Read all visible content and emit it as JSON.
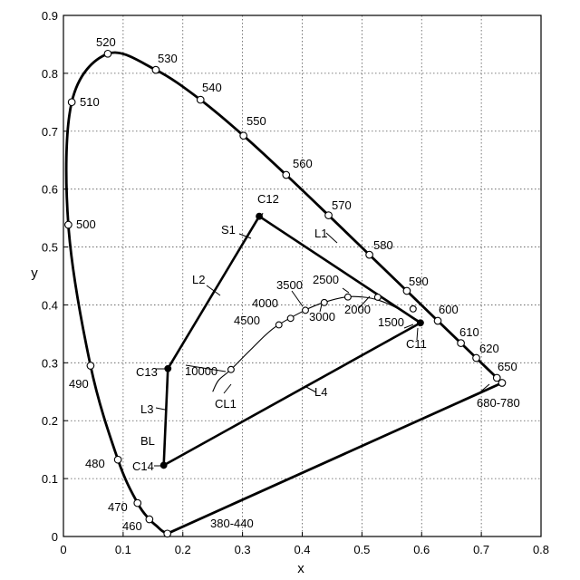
{
  "chart_data": {
    "type": "scatter",
    "title": "",
    "xlabel": "x",
    "ylabel": "y",
    "xlim": [
      0,
      0.8
    ],
    "ylim": [
      0,
      0.9
    ],
    "grid": true,
    "x_ticks": [
      "0",
      "0.1",
      "0.2",
      "0.3",
      "0.4",
      "0.5",
      "0.6",
      "0.7",
      "0.8"
    ],
    "y_ticks": [
      "0",
      "0.1",
      "0.2",
      "0.3",
      "0.4",
      "0.5",
      "0.6",
      "0.7",
      "0.8",
      "0.9"
    ],
    "spectral_locus": [
      [
        0.1741,
        0.005
      ],
      [
        0.165,
        0.01
      ],
      [
        0.1566,
        0.0177
      ],
      [
        0.144,
        0.0297
      ],
      [
        0.1241,
        0.0578
      ],
      [
        0.0913,
        0.1327
      ],
      [
        0.0454,
        0.295
      ],
      [
        0.0082,
        0.5384
      ],
      [
        0.0139,
        0.7502
      ],
      [
        0.0743,
        0.8338
      ],
      [
        0.1547,
        0.8059
      ],
      [
        0.2296,
        0.7543
      ],
      [
        0.3016,
        0.6923
      ],
      [
        0.3731,
        0.6245
      ],
      [
        0.4441,
        0.5547
      ],
      [
        0.5125,
        0.4866
      ],
      [
        0.5752,
        0.4242
      ],
      [
        0.627,
        0.3725
      ],
      [
        0.6658,
        0.334
      ],
      [
        0.6915,
        0.3083
      ],
      [
        0.7079,
        0.292
      ],
      [
        0.7347,
        0.2653
      ]
    ],
    "locus_labels": [
      {
        "text": "380-440",
        "x": 0.1741,
        "y": 0.005
      },
      {
        "text": "460",
        "x": 0.144,
        "y": 0.0297
      },
      {
        "text": "470",
        "x": 0.1241,
        "y": 0.0578
      },
      {
        "text": "480",
        "x": 0.0913,
        "y": 0.1327
      },
      {
        "text": "490",
        "x": 0.0454,
        "y": 0.295
      },
      {
        "text": "500",
        "x": 0.0082,
        "y": 0.5384
      },
      {
        "text": "510",
        "x": 0.0139,
        "y": 0.7502
      },
      {
        "text": "520",
        "x": 0.0743,
        "y": 0.8338
      },
      {
        "text": "530",
        "x": 0.1547,
        "y": 0.8059
      },
      {
        "text": "540",
        "x": 0.2296,
        "y": 0.7543
      },
      {
        "text": "550",
        "x": 0.3016,
        "y": 0.6923
      },
      {
        "text": "560",
        "x": 0.3731,
        "y": 0.6245
      },
      {
        "text": "570",
        "x": 0.4441,
        "y": 0.5547
      },
      {
        "text": "580",
        "x": 0.5125,
        "y": 0.4866
      },
      {
        "text": "590",
        "x": 0.5752,
        "y": 0.4242
      },
      {
        "text": "600",
        "x": 0.627,
        "y": 0.3725
      },
      {
        "text": "610",
        "x": 0.6658,
        "y": 0.334
      },
      {
        "text": "620",
        "x": 0.6915,
        "y": 0.3083
      },
      {
        "text": "650",
        "x": 0.726,
        "y": 0.274
      },
      {
        "text": "680-780",
        "x": 0.7347,
        "y": 0.2653
      }
    ],
    "planckian_locus": {
      "name": "CL1",
      "curve": [
        [
          0.25,
          0.25
        ],
        [
          0.26,
          0.27
        ],
        [
          0.2807,
          0.2884
        ],
        [
          0.314,
          0.323
        ],
        [
          0.353,
          0.3605
        ],
        [
          0.404,
          0.3905
        ],
        [
          0.437,
          0.4045
        ],
        [
          0.476,
          0.414
        ],
        [
          0.5065,
          0.413
        ],
        [
          0.528,
          0.408
        ],
        [
          0.55,
          0.399
        ],
        [
          0.57,
          0.388
        ],
        [
          0.586,
          0.378
        ],
        [
          0.6,
          0.37
        ]
      ],
      "points": [
        {
          "label": "10000",
          "x": 0.2807,
          "y": 0.2884
        },
        {
          "label": "4500",
          "x": 0.3609,
          "y": 0.3655
        },
        {
          "label": "4000",
          "x": 0.3805,
          "y": 0.3768
        },
        {
          "label": "3500",
          "x": 0.4053,
          "y": 0.3907
        },
        {
          "label": "3000",
          "x": 0.4369,
          "y": 0.4041
        },
        {
          "label": "2500",
          "x": 0.4765,
          "y": 0.4137
        },
        {
          "label": "2000",
          "x": 0.5265,
          "y": 0.4133
        },
        {
          "label": "1500",
          "x": 0.5857,
          "y": 0.3931
        }
      ]
    },
    "named_points": [
      {
        "label": "C11",
        "x": 0.598,
        "y": 0.369
      },
      {
        "label": "C12",
        "x": 0.328,
        "y": 0.553
      },
      {
        "label": "C13",
        "x": 0.175,
        "y": 0.29
      },
      {
        "label": "C14",
        "x": 0.168,
        "y": 0.123
      }
    ],
    "segments": [
      {
        "from": "C11",
        "to": "C12"
      },
      {
        "from": "C12",
        "to": "C13"
      },
      {
        "from": "C13",
        "to": "C14"
      },
      {
        "from": "C14",
        "to": "C11"
      }
    ],
    "annotations": [
      "L1",
      "L2",
      "L3",
      "L4",
      "S1",
      "BL"
    ]
  }
}
